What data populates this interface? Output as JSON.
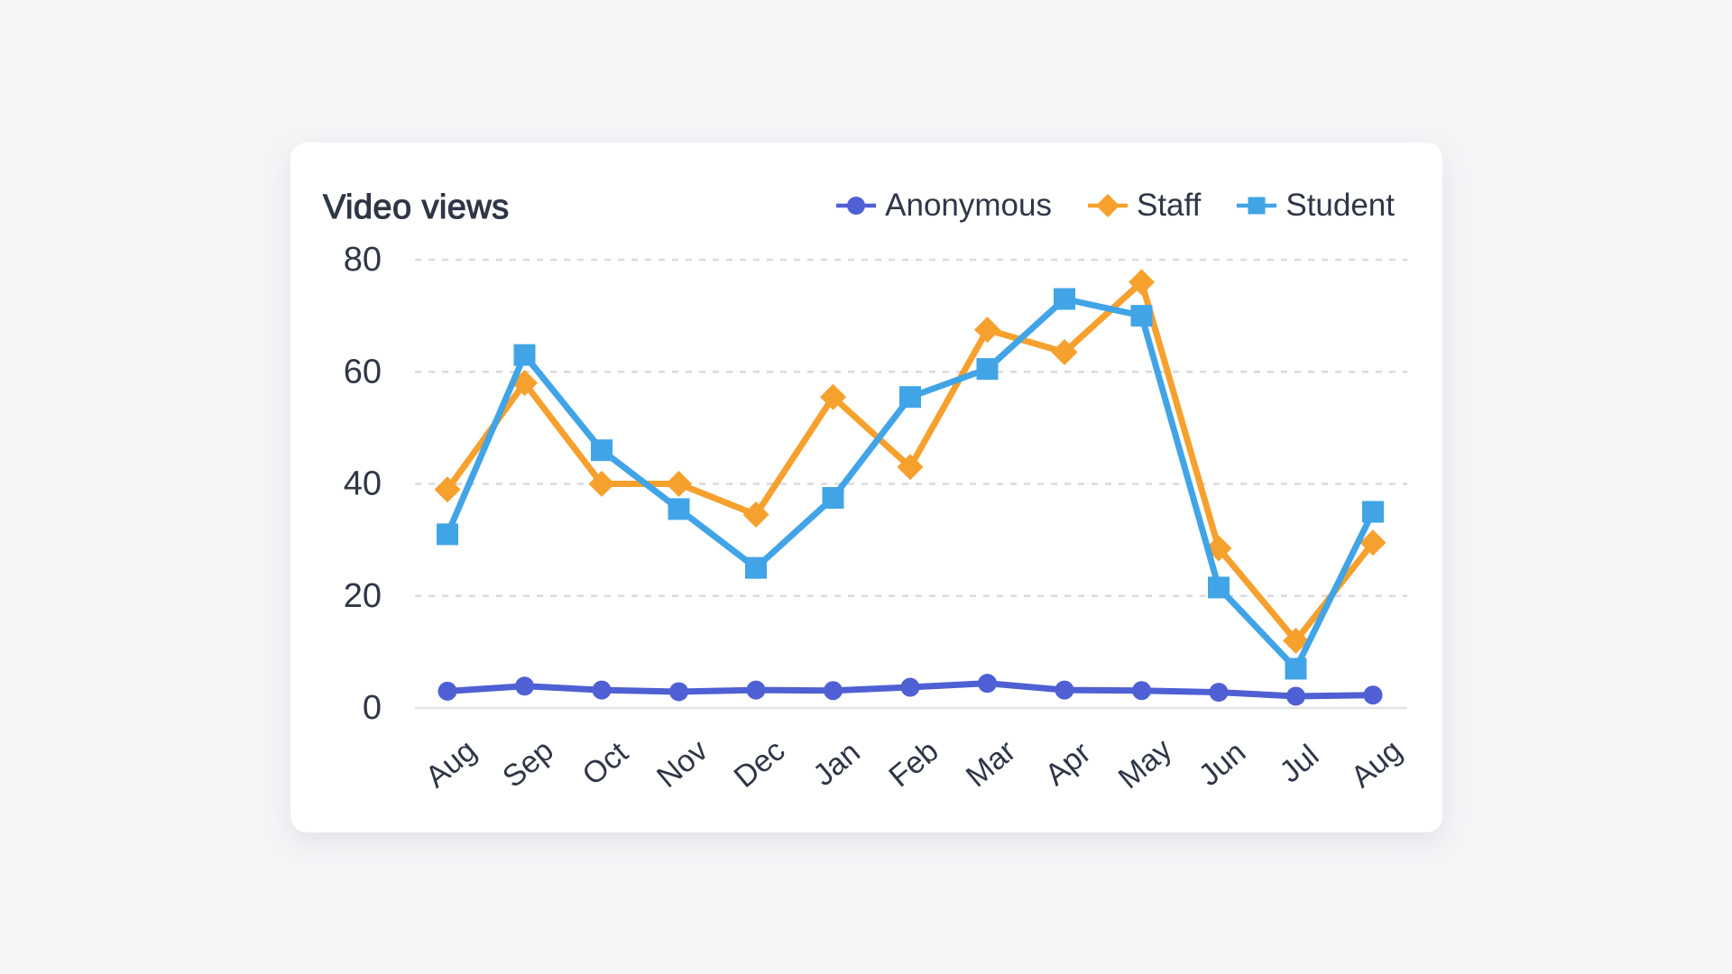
{
  "card": {
    "title": "Video views"
  },
  "chart_data": {
    "type": "line",
    "title": "Video views",
    "categories": [
      "Aug",
      "Sep",
      "Oct",
      "Nov",
      "Dec",
      "Jan",
      "Feb",
      "Mar",
      "Apr",
      "May",
      "Jun",
      "Jul",
      "Aug"
    ],
    "series": [
      {
        "name": "Anonymous",
        "marker": "circle",
        "color": "#4e60d3",
        "values": [
          3.0,
          3.9,
          3.2,
          2.9,
          3.2,
          3.1,
          3.7,
          4.4,
          3.2,
          3.1,
          2.8,
          2.1,
          2.3
        ]
      },
      {
        "name": "Staff",
        "marker": "diamond",
        "color": "#f6a02d",
        "values": [
          39,
          58,
          40,
          40,
          34.5,
          55.5,
          43,
          67.5,
          63.5,
          76,
          28.5,
          12,
          29.5
        ]
      },
      {
        "name": "Student",
        "marker": "square",
        "color": "#41a4e6",
        "values": [
          31,
          63,
          46,
          35.5,
          25,
          37.5,
          55.5,
          60.5,
          73,
          70,
          21.5,
          7,
          35
        ]
      }
    ],
    "ylim": [
      0,
      80
    ],
    "yticks": [
      0,
      20,
      40,
      60,
      80
    ],
    "grid": "horizontal-dashed",
    "legend_position": "top-right"
  },
  "colors": {
    "page_background": "#f4f5f7",
    "card_background": "#ffffff",
    "gridline": "#d8dade",
    "axis_line": "#e2e3e7",
    "text": "#2f3647"
  }
}
